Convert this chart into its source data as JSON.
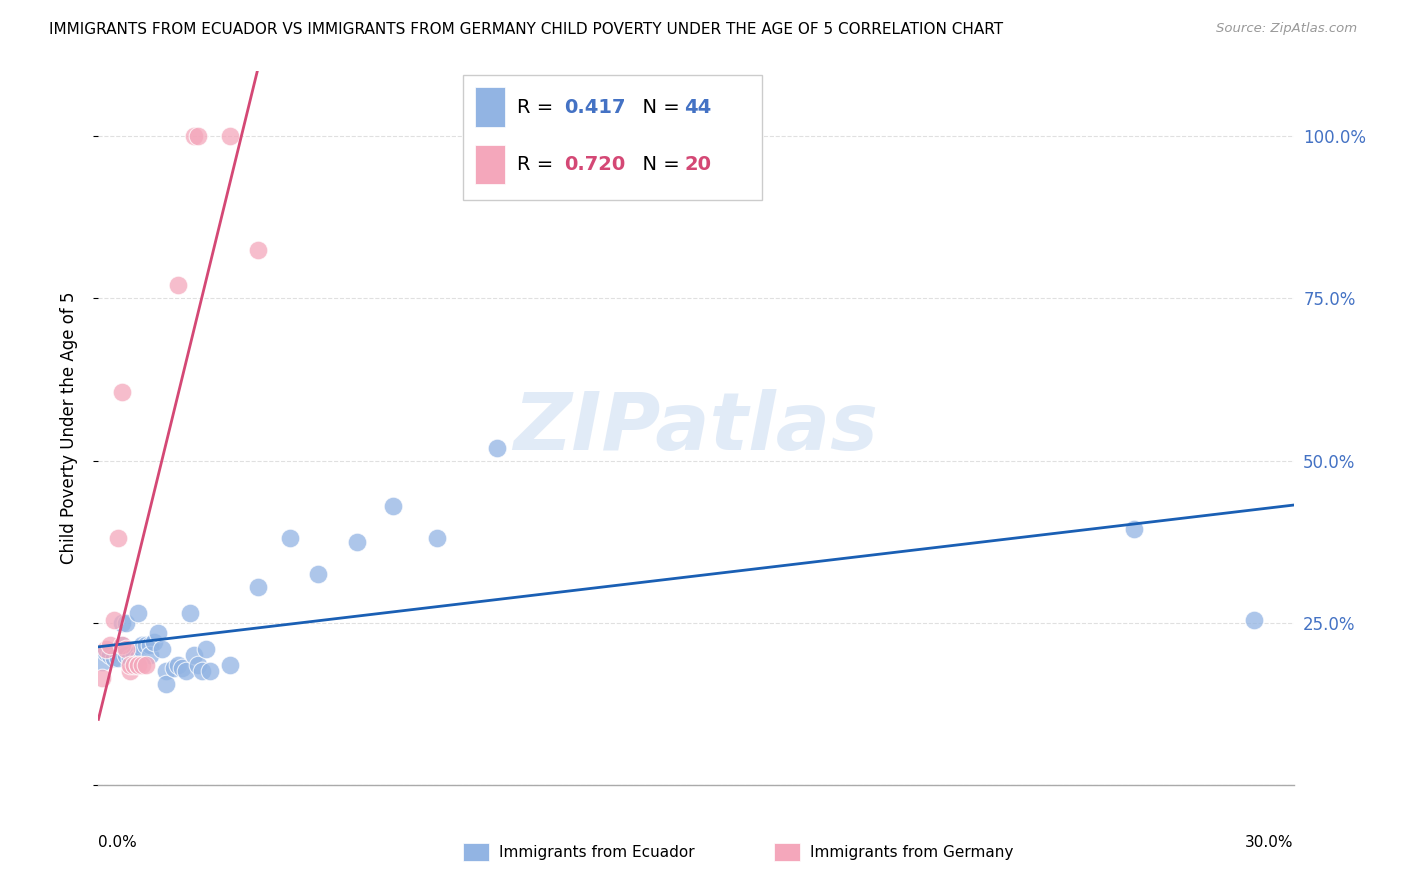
{
  "title": "IMMIGRANTS FROM ECUADOR VS IMMIGRANTS FROM GERMANY CHILD POVERTY UNDER THE AGE OF 5 CORRELATION CHART",
  "source": "Source: ZipAtlas.com",
  "ylabel": "Child Poverty Under the Age of 5",
  "yticks": [
    0.0,
    0.25,
    0.5,
    0.75,
    1.0
  ],
  "ytick_labels": [
    "",
    "25.0%",
    "50.0%",
    "75.0%",
    "100.0%"
  ],
  "xlim": [
    0.0,
    0.3
  ],
  "ylim": [
    0.0,
    1.1
  ],
  "ecuador_R": 0.417,
  "ecuador_N": 44,
  "germany_R": 0.72,
  "germany_N": 20,
  "ecuador_color": "#92b4e3",
  "germany_color": "#f4a7bb",
  "ecuador_line_color": "#1a5fb4",
  "germany_line_color": "#d44875",
  "legend_ecuador_label": "Immigrants from Ecuador",
  "legend_germany_label": "Immigrants from Germany",
  "ecuador_points": [
    [
      0.001,
      0.19
    ],
    [
      0.002,
      0.205
    ],
    [
      0.003,
      0.2
    ],
    [
      0.004,
      0.195
    ],
    [
      0.005,
      0.195
    ],
    [
      0.006,
      0.215
    ],
    [
      0.006,
      0.25
    ],
    [
      0.007,
      0.2
    ],
    [
      0.007,
      0.25
    ],
    [
      0.008,
      0.195
    ],
    [
      0.009,
      0.185
    ],
    [
      0.009,
      0.2
    ],
    [
      0.01,
      0.195
    ],
    [
      0.01,
      0.265
    ],
    [
      0.011,
      0.215
    ],
    [
      0.011,
      0.21
    ],
    [
      0.012,
      0.215
    ],
    [
      0.013,
      0.215
    ],
    [
      0.013,
      0.2
    ],
    [
      0.014,
      0.22
    ],
    [
      0.015,
      0.235
    ],
    [
      0.016,
      0.21
    ],
    [
      0.017,
      0.175
    ],
    [
      0.017,
      0.155
    ],
    [
      0.019,
      0.18
    ],
    [
      0.02,
      0.185
    ],
    [
      0.021,
      0.18
    ],
    [
      0.022,
      0.175
    ],
    [
      0.023,
      0.265
    ],
    [
      0.024,
      0.2
    ],
    [
      0.025,
      0.185
    ],
    [
      0.026,
      0.175
    ],
    [
      0.027,
      0.21
    ],
    [
      0.028,
      0.175
    ],
    [
      0.033,
      0.185
    ],
    [
      0.04,
      0.305
    ],
    [
      0.048,
      0.38
    ],
    [
      0.055,
      0.325
    ],
    [
      0.065,
      0.375
    ],
    [
      0.074,
      0.43
    ],
    [
      0.085,
      0.38
    ],
    [
      0.1,
      0.52
    ],
    [
      0.26,
      0.395
    ],
    [
      0.29,
      0.255
    ]
  ],
  "germany_points": [
    [
      0.001,
      0.165
    ],
    [
      0.002,
      0.21
    ],
    [
      0.003,
      0.215
    ],
    [
      0.004,
      0.255
    ],
    [
      0.005,
      0.38
    ],
    [
      0.006,
      0.215
    ],
    [
      0.006,
      0.605
    ],
    [
      0.007,
      0.21
    ],
    [
      0.008,
      0.175
    ],
    [
      0.008,
      0.185
    ],
    [
      0.009,
      0.185
    ],
    [
      0.01,
      0.185
    ],
    [
      0.01,
      0.185
    ],
    [
      0.011,
      0.185
    ],
    [
      0.012,
      0.185
    ],
    [
      0.02,
      0.77
    ],
    [
      0.024,
      1.0
    ],
    [
      0.025,
      1.0
    ],
    [
      0.033,
      1.0
    ],
    [
      0.04,
      0.825
    ]
  ],
  "watermark": "ZIPatlas",
  "background_color": "#ffffff",
  "grid_color": "#e0e0e0"
}
